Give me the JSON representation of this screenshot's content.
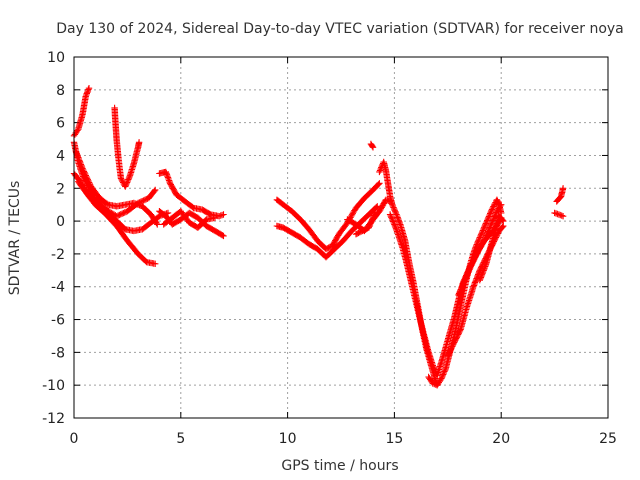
{
  "chart_data": {
    "type": "scatter",
    "title": "Day 130 of 2024, Sidereal Day-to-day VTEC variation (SDTVAR) for receiver noya",
    "xlabel": "GPS time / hours",
    "ylabel": "SDTVAR / TECUs",
    "xlim": [
      0,
      25
    ],
    "ylim": [
      -12,
      10
    ],
    "xticks": [
      "0",
      "5",
      "10",
      "15",
      "20",
      "25"
    ],
    "yticks": [
      "10",
      "8",
      "6",
      "4",
      "2",
      "0",
      "-2",
      "-4",
      "-6",
      "-8",
      "-10",
      "-12"
    ],
    "grid": true,
    "marker": "+",
    "color": "#ff0000",
    "series": [
      {
        "name": "SDTVAR",
        "tracks": [
          [
            [
              0.0,
              5.2
            ],
            [
              0.2,
              5.6
            ],
            [
              0.4,
              6.5
            ],
            [
              0.55,
              7.6
            ],
            [
              0.7,
              8.1
            ]
          ],
          [
            [
              0.0,
              4.8
            ],
            [
              0.2,
              3.6
            ],
            [
              0.4,
              2.8
            ],
            [
              0.7,
              2.0
            ],
            [
              1.0,
              1.3
            ],
            [
              1.5,
              0.7
            ],
            [
              2.0,
              0.3
            ],
            [
              2.5,
              0.6
            ],
            [
              3.0,
              1.1
            ],
            [
              3.5,
              1.4
            ],
            [
              3.8,
              1.9
            ]
          ],
          [
            [
              0.0,
              2.9
            ],
            [
              0.3,
              2.4
            ],
            [
              0.6,
              1.7
            ],
            [
              1.0,
              1.0
            ],
            [
              1.5,
              0.4
            ],
            [
              2.0,
              -0.3
            ],
            [
              2.5,
              -1.2
            ],
            [
              3.0,
              -2.0
            ],
            [
              3.4,
              -2.5
            ],
            [
              3.8,
              -2.6
            ]
          ],
          [
            [
              0.1,
              4.2
            ],
            [
              0.4,
              3.2
            ],
            [
              0.8,
              2.1
            ],
            [
              1.2,
              1.4
            ],
            [
              1.6,
              1.0
            ],
            [
              2.0,
              0.9
            ],
            [
              2.4,
              1.0
            ],
            [
              2.8,
              1.1
            ],
            [
              3.2,
              0.9
            ],
            [
              3.6,
              0.4
            ],
            [
              3.9,
              -0.2
            ]
          ],
          [
            [
              0.2,
              2.4
            ],
            [
              0.7,
              1.5
            ],
            [
              1.1,
              0.9
            ],
            [
              1.6,
              0.4
            ],
            [
              2.0,
              0.0
            ],
            [
              2.4,
              -0.5
            ],
            [
              2.8,
              -0.6
            ],
            [
              3.2,
              -0.5
            ],
            [
              3.6,
              -0.1
            ],
            [
              4.0,
              0.3
            ],
            [
              4.4,
              0.5
            ]
          ],
          [
            [
              1.9,
              6.9
            ],
            [
              1.95,
              5.8
            ],
            [
              2.0,
              4.9
            ],
            [
              2.1,
              3.6
            ],
            [
              2.2,
              2.6
            ],
            [
              2.4,
              2.1
            ],
            [
              2.6,
              2.7
            ],
            [
              2.8,
              3.5
            ],
            [
              3.0,
              4.5
            ],
            [
              3.05,
              4.8
            ]
          ],
          [
            [
              4.0,
              2.9
            ],
            [
              4.3,
              3.0
            ],
            [
              4.5,
              2.3
            ],
            [
              4.8,
              1.6
            ],
            [
              5.2,
              1.2
            ],
            [
              5.6,
              0.8
            ],
            [
              6.0,
              0.7
            ],
            [
              6.4,
              0.4
            ],
            [
              6.8,
              0.3
            ],
            [
              7.0,
              0.4
            ]
          ],
          [
            [
              4.0,
              0.6
            ],
            [
              4.3,
              0.3
            ],
            [
              4.6,
              -0.2
            ],
            [
              5.0,
              0.1
            ],
            [
              5.4,
              0.5
            ],
            [
              5.8,
              0.2
            ],
            [
              6.2,
              -0.3
            ],
            [
              6.6,
              -0.6
            ],
            [
              7.0,
              -0.9
            ]
          ],
          [
            [
              4.2,
              -0.2
            ],
            [
              4.6,
              0.2
            ],
            [
              5.0,
              0.6
            ],
            [
              5.4,
              -0.1
            ],
            [
              5.8,
              -0.4
            ],
            [
              6.2,
              0.1
            ],
            [
              6.6,
              0.2
            ]
          ],
          [
            [
              9.5,
              1.3
            ],
            [
              9.8,
              1.0
            ],
            [
              10.2,
              0.6
            ],
            [
              10.6,
              0.1
            ],
            [
              11.0,
              -0.5
            ],
            [
              11.4,
              -1.2
            ],
            [
              11.8,
              -1.7
            ],
            [
              12.1,
              -1.5
            ],
            [
              12.4,
              -0.8
            ],
            [
              12.8,
              -0.1
            ],
            [
              13.2,
              0.8
            ],
            [
              13.6,
              1.4
            ],
            [
              14.0,
              1.9
            ],
            [
              14.3,
              2.3
            ]
          ],
          [
            [
              9.5,
              -0.3
            ],
            [
              9.8,
              -0.4
            ],
            [
              10.2,
              -0.7
            ],
            [
              10.6,
              -1.0
            ],
            [
              11.0,
              -1.4
            ],
            [
              11.4,
              -1.7
            ],
            [
              11.8,
              -2.2
            ],
            [
              12.2,
              -1.7
            ],
            [
              12.6,
              -1.2
            ],
            [
              13.0,
              -0.6
            ],
            [
              13.4,
              -0.1
            ],
            [
              13.8,
              0.4
            ],
            [
              14.2,
              0.9
            ]
          ],
          [
            [
              12.8,
              0.1
            ],
            [
              13.2,
              -0.2
            ],
            [
              13.6,
              -0.6
            ],
            [
              14.0,
              0.1
            ],
            [
              14.3,
              0.6
            ],
            [
              14.6,
              1.3
            ],
            [
              14.8,
              1.2
            ]
          ],
          [
            [
              13.2,
              -0.8
            ],
            [
              13.5,
              -0.6
            ],
            [
              13.8,
              -0.4
            ],
            [
              14.1,
              0.5
            ]
          ],
          [
            [
              13.9,
              4.7
            ],
            [
              14.0,
              4.5
            ]
          ],
          [
            [
              14.3,
              3.0
            ],
            [
              14.5,
              3.6
            ],
            [
              14.6,
              3.1
            ],
            [
              14.7,
              2.3
            ],
            [
              14.8,
              1.5
            ],
            [
              14.9,
              1.0
            ],
            [
              15.1,
              0.4
            ],
            [
              15.3,
              -0.3
            ],
            [
              15.5,
              -1.2
            ],
            [
              15.7,
              -2.6
            ],
            [
              15.9,
              -3.8
            ],
            [
              16.1,
              -5.2
            ],
            [
              16.3,
              -6.6
            ],
            [
              16.5,
              -7.8
            ],
            [
              16.7,
              -8.7
            ],
            [
              16.9,
              -9.6
            ],
            [
              17.0,
              -10.0
            ]
          ],
          [
            [
              14.8,
              0.4
            ],
            [
              15.0,
              -0.2
            ],
            [
              15.2,
              -0.9
            ],
            [
              15.4,
              -1.7
            ],
            [
              15.6,
              -2.7
            ],
            [
              15.8,
              -3.8
            ],
            [
              16.0,
              -4.9
            ],
            [
              16.2,
              -6.0
            ],
            [
              16.4,
              -7.0
            ],
            [
              16.6,
              -8.0
            ],
            [
              16.8,
              -8.8
            ],
            [
              17.0,
              -9.4
            ],
            [
              17.2,
              -8.6
            ],
            [
              17.4,
              -7.7
            ],
            [
              17.6,
              -6.8
            ],
            [
              17.8,
              -5.9
            ],
            [
              18.0,
              -4.8
            ],
            [
              18.2,
              -3.8
            ],
            [
              18.5,
              -2.9
            ],
            [
              18.8,
              -2.1
            ],
            [
              19.1,
              -1.4
            ],
            [
              19.4,
              -0.9
            ],
            [
              19.7,
              -0.5
            ],
            [
              20.0,
              0.2
            ]
          ],
          [
            [
              16.6,
              -9.5
            ],
            [
              16.8,
              -9.9
            ],
            [
              17.0,
              -10.0
            ],
            [
              17.2,
              -9.6
            ],
            [
              17.4,
              -9.0
            ],
            [
              17.6,
              -8.0
            ],
            [
              17.8,
              -7.0
            ],
            [
              18.0,
              -5.8
            ],
            [
              18.2,
              -4.6
            ],
            [
              18.4,
              -3.4
            ],
            [
              18.6,
              -2.4
            ],
            [
              18.8,
              -1.6
            ],
            [
              19.0,
              -1.0
            ],
            [
              19.2,
              -0.4
            ],
            [
              19.4,
              0.2
            ],
            [
              19.6,
              0.8
            ],
            [
              19.8,
              1.3
            ],
            [
              19.9,
              1.0
            ],
            [
              20.0,
              0.5
            ]
          ],
          [
            [
              17.5,
              -8.2
            ],
            [
              17.8,
              -7.4
            ],
            [
              18.1,
              -6.6
            ],
            [
              18.4,
              -5.2
            ],
            [
              18.7,
              -4.0
            ],
            [
              19.0,
              -3.0
            ],
            [
              19.3,
              -2.2
            ],
            [
              19.6,
              -1.4
            ],
            [
              19.9,
              -0.6
            ],
            [
              20.1,
              -0.3
            ]
          ],
          [
            [
              18.0,
              -4.5
            ],
            [
              18.3,
              -3.6
            ],
            [
              18.6,
              -2.7
            ],
            [
              18.9,
              -1.9
            ],
            [
              19.2,
              -1.2
            ],
            [
              19.5,
              -0.3
            ],
            [
              19.8,
              0.6
            ],
            [
              20.0,
              1.0
            ]
          ],
          [
            [
              19.0,
              -3.6
            ],
            [
              19.3,
              -2.6
            ],
            [
              19.5,
              -1.6
            ],
            [
              19.7,
              -0.6
            ],
            [
              19.9,
              0.3
            ],
            [
              20.1,
              0.0
            ]
          ],
          [
            [
              22.6,
              1.2
            ],
            [
              22.8,
              1.5
            ],
            [
              22.9,
              2.0
            ]
          ],
          [
            [
              22.5,
              0.5
            ],
            [
              22.7,
              0.4
            ],
            [
              22.9,
              0.3
            ]
          ]
        ]
      }
    ]
  }
}
